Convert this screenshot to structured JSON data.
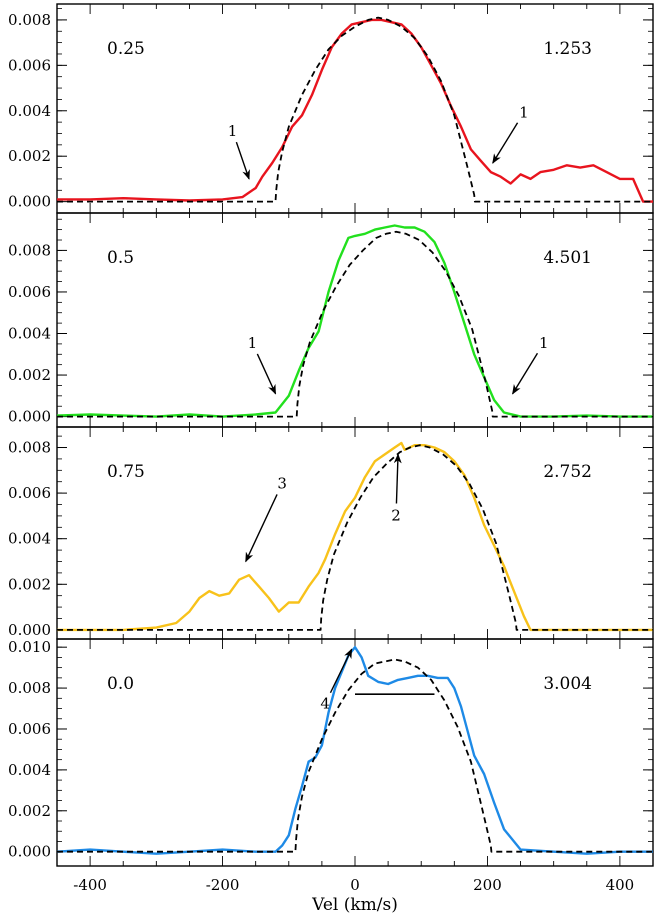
{
  "chart_data": {
    "type": "line",
    "xlabel": "Vel (km/s)",
    "xlim": [
      -450,
      450
    ],
    "xticks": [
      -400,
      -200,
      0,
      200,
      400
    ],
    "xtick_labels": [
      "-400",
      "-200",
      "0",
      "200",
      "400"
    ],
    "panels": [
      {
        "phase_label": "0.25",
        "value_label": "1.253",
        "ylim": [
          -0.0005,
          0.0087
        ],
        "yticks": [
          0.0,
          0.002,
          0.004,
          0.006,
          0.008
        ],
        "ytick_labels": [
          "0.000",
          "0.002",
          "0.004",
          "0.006",
          "0.008"
        ],
        "series": [
          {
            "style": "solid",
            "color": "#e8141e",
            "x": [
              -450,
              -400,
              -350,
              -300,
              -250,
              -200,
              -170,
              -150,
              -140,
              -125,
              -110,
              -95,
              -80,
              -65,
              -50,
              -35,
              -20,
              -5,
              10,
              25,
              40,
              55,
              70,
              85,
              100,
              115,
              130,
              145,
              160,
              175,
              190,
              205,
              220,
              235,
              250,
              265,
              280,
              300,
              320,
              340,
              360,
              380,
              400,
              420,
              435,
              450
            ],
            "y": [
              0.0001,
              0.0001,
              0.00015,
              0.0001,
              5e-05,
              0.0001,
              0.0002,
              0.0006,
              0.0011,
              0.0017,
              0.0024,
              0.0033,
              0.0038,
              0.0047,
              0.0058,
              0.0068,
              0.0074,
              0.0078,
              0.0079,
              0.008,
              0.008,
              0.0079,
              0.0078,
              0.0074,
              0.0068,
              0.006,
              0.0052,
              0.0042,
              0.0033,
              0.0023,
              0.0018,
              0.0013,
              0.0011,
              0.0008,
              0.0012,
              0.001,
              0.0013,
              0.0014,
              0.0016,
              0.0015,
              0.0016,
              0.0013,
              0.001,
              0.001,
              0.0,
              0.0
            ]
          },
          {
            "style": "dashed",
            "color": "#000000",
            "x": [
              -450,
              -120,
              -119,
              -116,
              -110,
              -100,
              -80,
              -60,
              -40,
              -20,
              0,
              20,
              35,
              50,
              70,
              90,
              110,
              130,
              150,
              170,
              180,
              181,
              450
            ],
            "y": [
              0.0,
              0.0,
              0.0005,
              0.0013,
              0.0022,
              0.0033,
              0.0047,
              0.0058,
              0.0067,
              0.0073,
              0.0077,
              0.008,
              0.0081,
              0.008,
              0.0077,
              0.0072,
              0.0064,
              0.0053,
              0.0038,
              0.0015,
              0.0003,
              0.0,
              0.0
            ]
          }
        ],
        "annotations": [
          {
            "text": "1",
            "x": -185,
            "y": 0.0029,
            "arrow_to": [
              -160,
              0.001
            ]
          },
          {
            "text": "1",
            "x": 255,
            "y": 0.0037,
            "arrow_to": [
              208,
              0.0017
            ]
          }
        ]
      },
      {
        "phase_label": "0.5",
        "value_label": "4.501",
        "ylim": [
          -0.0005,
          0.0098
        ],
        "yticks": [
          0.0,
          0.002,
          0.004,
          0.006,
          0.008
        ],
        "ytick_labels": [
          "0.000",
          "0.002",
          "0.004",
          "0.006",
          "0.008"
        ],
        "series": [
          {
            "style": "solid",
            "color": "#22e01e",
            "x": [
              -450,
              -400,
              -350,
              -300,
              -250,
              -200,
              -150,
              -120,
              -100,
              -85,
              -70,
              -55,
              -40,
              -25,
              -10,
              0,
              15,
              30,
              45,
              60,
              75,
              90,
              105,
              120,
              135,
              150,
              165,
              180,
              195,
              210,
              225,
              250,
              300,
              350,
              400,
              450
            ],
            "y": [
              5e-05,
              0.0001,
              5e-05,
              0.0,
              0.0001,
              0.0,
              0.0001,
              0.0002,
              0.001,
              0.0022,
              0.0033,
              0.0041,
              0.006,
              0.0075,
              0.0086,
              0.0087,
              0.0088,
              0.009,
              0.0091,
              0.0092,
              0.0091,
              0.0091,
              0.0089,
              0.0084,
              0.0074,
              0.006,
              0.0045,
              0.003,
              0.0019,
              0.0008,
              0.0002,
              0.0,
              0.0,
              5e-05,
              0.0,
              0.0
            ]
          },
          {
            "style": "dashed",
            "color": "#000000",
            "x": [
              -450,
              -88,
              -87,
              -84,
              -78,
              -68,
              -48,
              -28,
              -8,
              12,
              32,
              47,
              62,
              77,
              97,
              117,
              137,
              157,
              177,
              197,
              207,
              208,
              450
            ],
            "y": [
              0.0,
              0.0,
              0.0006,
              0.0015,
              0.0025,
              0.0036,
              0.0051,
              0.0063,
              0.0073,
              0.008,
              0.0086,
              0.0088,
              0.0089,
              0.0088,
              0.0085,
              0.0079,
              0.007,
              0.0058,
              0.0042,
              0.0017,
              0.0003,
              0.0,
              0.0
            ]
          }
        ],
        "annotations": [
          {
            "text": "1",
            "x": -155,
            "y": 0.0033,
            "arrow_to": [
              -120,
              0.0011
            ]
          },
          {
            "text": "1",
            "x": 285,
            "y": 0.0033,
            "arrow_to": [
              238,
              0.0011
            ]
          }
        ]
      },
      {
        "phase_label": "0.75",
        "value_label": "2.752",
        "ylim": [
          -0.0004,
          0.0089
        ],
        "yticks": [
          0.0,
          0.002,
          0.004,
          0.006,
          0.008
        ],
        "ytick_labels": [
          "0.000",
          "0.002",
          "0.004",
          "0.006",
          "0.008"
        ],
        "series": [
          {
            "style": "solid",
            "color": "#f8c21a",
            "x": [
              -450,
              -350,
              -300,
              -270,
              -250,
              -235,
              -220,
              -205,
              -190,
              -175,
              -160,
              -145,
              -130,
              -115,
              -100,
              -85,
              -70,
              -55,
              -45,
              -30,
              -15,
              0,
              15,
              30,
              45,
              60,
              70,
              75,
              90,
              105,
              120,
              135,
              150,
              165,
              180,
              195,
              210,
              225,
              240,
              255,
              265,
              300,
              350,
              400,
              450
            ],
            "y": [
              0.0,
              0.0,
              0.0001,
              0.0003,
              0.0008,
              0.0014,
              0.0017,
              0.0015,
              0.0016,
              0.0022,
              0.0024,
              0.0019,
              0.0014,
              0.0008,
              0.0012,
              0.0012,
              0.0019,
              0.0025,
              0.0031,
              0.0042,
              0.0052,
              0.0058,
              0.0067,
              0.0074,
              0.0077,
              0.008,
              0.0082,
              0.0079,
              0.0081,
              0.0081,
              0.008,
              0.0078,
              0.0074,
              0.0068,
              0.0058,
              0.0046,
              0.0037,
              0.0028,
              0.0017,
              0.0006,
              0.0,
              0.0,
              0.0,
              0.0,
              0.0
            ]
          },
          {
            "style": "dashed",
            "color": "#000000",
            "x": [
              -450,
              -52,
              -51,
              -48,
              -42,
              -32,
              -12,
              8,
              28,
              48,
              68,
              83,
              98,
              113,
              133,
              153,
              173,
              193,
              213,
              233,
              243,
              244,
              450
            ],
            "y": [
              0.0,
              0.0,
              0.0005,
              0.0013,
              0.0022,
              0.0033,
              0.0047,
              0.0058,
              0.0067,
              0.0073,
              0.0078,
              0.008,
              0.0081,
              0.008,
              0.0077,
              0.0072,
              0.0064,
              0.0053,
              0.0038,
              0.0015,
              0.0003,
              0.0,
              0.0
            ]
          }
        ],
        "annotations": [
          {
            "text": "3",
            "x": -110,
            "y": 0.0062,
            "arrow_to": [
              -165,
              0.003
            ]
          },
          {
            "text": "2",
            "x": 62,
            "y": 0.0048,
            "arrow_to": [
              65,
              0.0077
            ]
          }
        ]
      },
      {
        "phase_label": "0.0",
        "value_label": "3.004",
        "ylim": [
          -0.0007,
          0.0104
        ],
        "yticks": [
          0.0,
          0.002,
          0.004,
          0.006,
          0.008,
          0.01
        ],
        "ytick_labels": [
          "0.000",
          "0.002",
          "0.004",
          "0.006",
          "0.008",
          "0.010"
        ],
        "series": [
          {
            "style": "solid",
            "color": "#1e8ae6",
            "x": [
              -450,
              -400,
              -350,
              -300,
              -250,
              -200,
              -150,
              -120,
              -110,
              -100,
              -90,
              -80,
              -70,
              -60,
              -50,
              -40,
              -30,
              -20,
              -10,
              0,
              10,
              20,
              35,
              50,
              65,
              80,
              95,
              110,
              125,
              140,
              150,
              160,
              170,
              180,
              195,
              210,
              225,
              250,
              300,
              350,
              400,
              450
            ],
            "y": [
              0.0,
              0.0001,
              0.0,
              -0.0001,
              0.0,
              0.0001,
              0.0,
              0.0,
              0.0003,
              0.0008,
              0.0021,
              0.0032,
              0.0044,
              0.0046,
              0.0052,
              0.0068,
              0.008,
              0.0088,
              0.0096,
              0.01,
              0.0095,
              0.0086,
              0.0083,
              0.0082,
              0.0084,
              0.0085,
              0.0086,
              0.0086,
              0.0085,
              0.0085,
              0.008,
              0.0071,
              0.0059,
              0.0047,
              0.0038,
              0.0024,
              0.0011,
              0.0001,
              0.0,
              -0.0001,
              0.0,
              0.0
            ]
          },
          {
            "style": "dashed",
            "color": "#000000",
            "x": [
              -450,
              -90,
              -89,
              -86,
              -80,
              -70,
              -50,
              -30,
              -10,
              10,
              30,
              45,
              60,
              75,
              95,
              115,
              135,
              155,
              175,
              195,
              205,
              206,
              450
            ],
            "y": [
              0.0,
              0.0,
              0.0006,
              0.0016,
              0.0027,
              0.0039,
              0.0055,
              0.0068,
              0.0079,
              0.0087,
              0.0092,
              0.0093,
              0.0094,
              0.0093,
              0.009,
              0.0084,
              0.0074,
              0.0061,
              0.0044,
              0.0017,
              0.0003,
              0.0,
              0.0
            ]
          }
        ],
        "annotations": [
          {
            "text": "4",
            "x": -45,
            "y": 0.007,
            "arrow_to": [
              -5,
              0.0099
            ]
          }
        ],
        "hline": {
          "x": [
            0,
            120
          ],
          "y": 0.0077
        }
      }
    ]
  }
}
